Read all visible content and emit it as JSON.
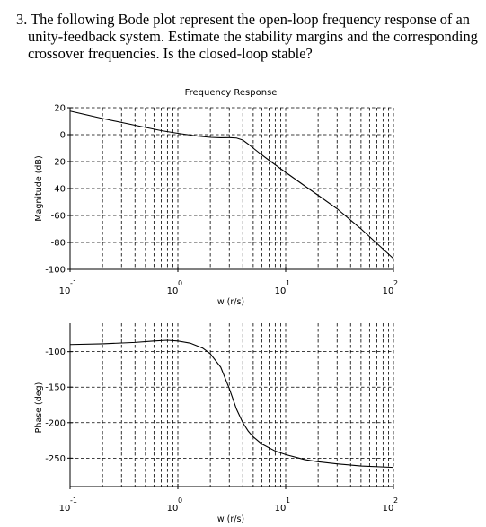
{
  "question": "3. The following Bode plot represent the open-loop frequency response of an unity-feedback system. Estimate the stability margins and the corresponding crossover frequencies. Is the closed-loop stable?",
  "chart_data": [
    {
      "type": "line",
      "title": "Frequency Response",
      "xlabel": "w (r/s)",
      "ylabel": "Magnitude (dB)",
      "xscale": "log",
      "xlim": [
        0.1,
        100
      ],
      "ylim": [
        -100,
        20
      ],
      "grid": true,
      "x_ticks": [
        {
          "base": "10",
          "exp": "-1"
        },
        {
          "base": "10",
          "exp": "0"
        },
        {
          "base": "10",
          "exp": "1"
        },
        {
          "base": "10",
          "exp": "2"
        }
      ],
      "y_ticks": [
        "20",
        "0",
        "-20",
        "-40",
        "-60",
        "-80",
        "-100"
      ],
      "x": [
        0.1,
        0.2,
        0.4,
        0.7,
        1,
        1.5,
        2,
        2.5,
        3,
        3.5,
        4,
        4.5,
        5,
        6,
        7,
        10,
        15,
        20,
        30,
        50,
        100
      ],
      "y": [
        17.5,
        12,
        7,
        3,
        1,
        -1,
        -2,
        -2.3,
        -2.2,
        -2.5,
        -4,
        -7,
        -10,
        -15,
        -19,
        -28,
        -38,
        -45,
        -55,
        -70,
        -92
      ]
    },
    {
      "type": "line",
      "title": "",
      "xlabel": "w (r/s)",
      "ylabel": "Phase (deg)",
      "xscale": "log",
      "xlim": [
        0.1,
        100
      ],
      "ylim": [
        -290,
        -60
      ],
      "grid": true,
      "x_ticks": [
        {
          "base": "10",
          "exp": "-1"
        },
        {
          "base": "10",
          "exp": "0"
        },
        {
          "base": "10",
          "exp": "1"
        },
        {
          "base": "10",
          "exp": "2"
        }
      ],
      "y_ticks": [
        "-100",
        "-150",
        "-200",
        "-250"
      ],
      "x": [
        0.1,
        0.2,
        0.4,
        0.6,
        0.8,
        1,
        1.3,
        1.7,
        2,
        2.5,
        3,
        3.5,
        4,
        4.5,
        5,
        6,
        8,
        10,
        15,
        20,
        30,
        50,
        100
      ],
      "y": [
        -90,
        -89,
        -87,
        -85,
        -84,
        -85,
        -88,
        -95,
        -103,
        -122,
        -152,
        -181,
        -200,
        -212,
        -220,
        -230,
        -240,
        -245,
        -252,
        -255,
        -258,
        -261,
        -263
      ]
    }
  ]
}
